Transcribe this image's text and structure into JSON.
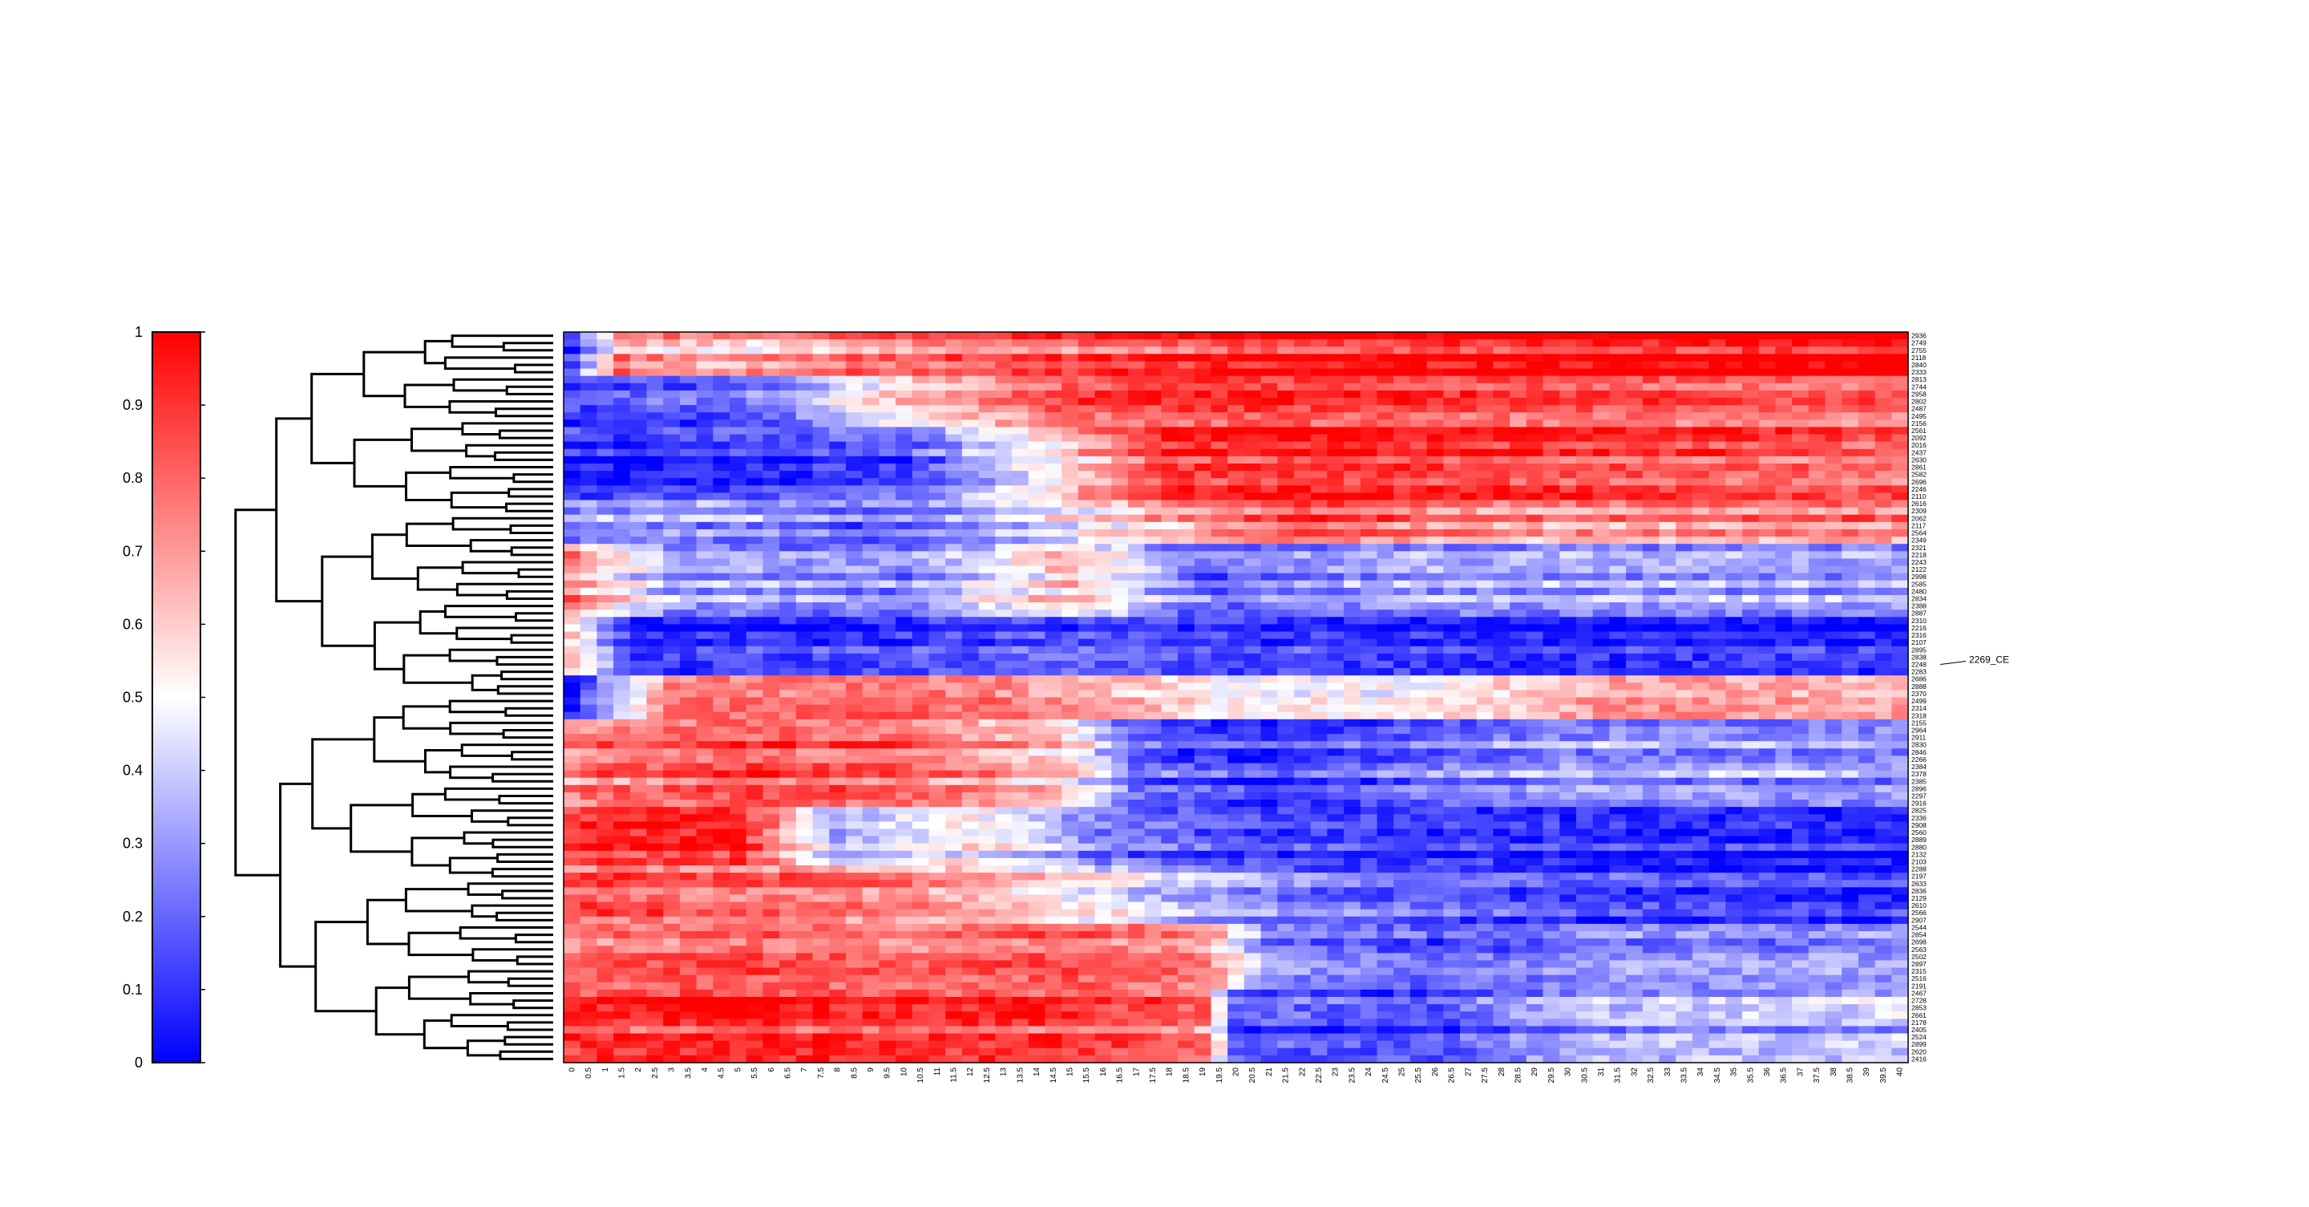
{
  "chart_data": {
    "type": "heatmap",
    "title": "",
    "xlabel": "",
    "ylabel": "",
    "colorbar": {
      "range": [
        0,
        1
      ],
      "ticks": [
        0,
        0.1,
        0.2,
        0.3,
        0.4,
        0.5,
        0.6,
        0.7,
        0.8,
        0.9,
        1
      ],
      "tick_labels": [
        "0",
        "0.1",
        "0.2",
        "0.3",
        "0.4",
        "0.5",
        "0.6",
        "0.7",
        "0.8",
        "0.9",
        "1"
      ],
      "colormap": [
        "#0000ff",
        "#ffffff",
        "#ff0000"
      ]
    },
    "x_ticks": [
      "0",
      "0.5",
      "1",
      "1.5",
      "2",
      "2.5",
      "3",
      "3.5",
      "4",
      "4.5",
      "5",
      "5.5",
      "6",
      "6.5",
      "7",
      "7.5",
      "8",
      "8.5",
      "9",
      "9.5",
      "10",
      "10.5",
      "11",
      "11.5",
      "12",
      "12.5",
      "13",
      "13.5",
      "14",
      "14.5",
      "15",
      "15.5",
      "16",
      "16.5",
      "17",
      "17.5",
      "18",
      "18.5",
      "19",
      "19.5",
      "20",
      "20.5",
      "21",
      "21.5",
      "22",
      "22.5",
      "23",
      "23.5",
      "24",
      "24.5",
      "25",
      "25.5",
      "26",
      "26.5",
      "27",
      "27.5",
      "28",
      "28.5",
      "29",
      "29.5",
      "30",
      "30.5",
      "31",
      "31.5",
      "32",
      "32.5",
      "33",
      "33.5",
      "34",
      "34.5",
      "35",
      "35.5",
      "36",
      "36.5",
      "37",
      "37.5",
      "38",
      "38.5",
      "39",
      "39.5",
      "40"
    ],
    "row_count": 100,
    "row_labels": [
      "2936",
      "2749",
      "2755",
      "2118",
      "2840",
      "2333",
      "2813",
      "2744",
      "2958",
      "2802",
      "2487",
      "2495",
      "2156",
      "2561",
      "2092",
      "2016",
      "2437",
      "2630",
      "2861",
      "2582",
      "2696",
      "2246",
      "2110",
      "2616",
      "2309",
      "2062",
      "2117",
      "2564",
      "2349",
      "2321",
      "2218",
      "2243",
      "2122",
      "2998",
      "2585",
      "2480",
      "2834",
      "2388",
      "2887",
      "2310",
      "2216",
      "2316",
      "2107",
      "2895",
      "2838",
      "2248",
      "2283",
      "2686",
      "2888",
      "2370",
      "2499",
      "2314",
      "2318",
      "2155",
      "2964",
      "2911",
      "2830",
      "2846",
      "2266",
      "2384",
      "2378",
      "2385",
      "2896",
      "2297",
      "2916",
      "2825",
      "2336",
      "2908",
      "2560",
      "2889",
      "2880",
      "2132",
      "2103",
      "2288",
      "2197",
      "2633",
      "2836",
      "2129",
      "2610",
      "2566",
      "2907",
      "2544",
      "2854",
      "2698",
      "2563",
      "2502",
      "2897",
      "2315",
      "2516",
      "2191",
      "2467",
      "2728",
      "2853",
      "2661",
      "2178",
      "2405",
      "2524",
      "2899",
      "2620",
      "2416"
    ],
    "annotation": "2269_CE",
    "value_profiles": [
      {
        "rows": [
          0,
          5
        ],
        "anchors": [
          [
            0,
            0.1
          ],
          [
            1.5,
            0.7
          ],
          [
            5,
            0.6
          ],
          [
            10,
            0.75
          ],
          [
            15,
            0.8
          ],
          [
            20,
            0.9
          ],
          [
            30,
            0.95
          ],
          [
            40,
            1.0
          ]
        ]
      },
      {
        "rows": [
          6,
          12
        ],
        "anchors": [
          [
            0,
            0.15
          ],
          [
            5,
            0.2
          ],
          [
            10,
            0.6
          ],
          [
            15,
            0.85
          ],
          [
            20,
            0.9
          ],
          [
            30,
            0.85
          ],
          [
            40,
            0.8
          ]
        ]
      },
      {
        "rows": [
          13,
          22
        ],
        "anchors": [
          [
            0,
            0.05
          ],
          [
            5,
            0.1
          ],
          [
            10,
            0.15
          ],
          [
            13,
            0.4
          ],
          [
            18,
            0.9
          ],
          [
            25,
            0.9
          ],
          [
            40,
            0.8
          ]
        ]
      },
      {
        "rows": [
          23,
          28
        ],
        "anchors": [
          [
            0,
            0.3
          ],
          [
            5,
            0.3
          ],
          [
            10,
            0.2
          ],
          [
            17,
            0.6
          ],
          [
            22,
            0.85
          ],
          [
            28,
            0.7
          ],
          [
            40,
            0.75
          ]
        ]
      },
      {
        "rows": [
          29,
          38
        ],
        "anchors": [
          [
            0,
            0.7
          ],
          [
            3,
            0.3
          ],
          [
            10,
            0.25
          ],
          [
            15,
            0.6
          ],
          [
            19,
            0.2
          ],
          [
            25,
            0.3
          ],
          [
            40,
            0.3
          ]
        ]
      },
      {
        "rows": [
          39,
          46
        ],
        "anchors": [
          [
            0,
            0.6
          ],
          [
            2,
            0.1
          ],
          [
            10,
            0.15
          ],
          [
            15,
            0.2
          ],
          [
            20,
            0.15
          ],
          [
            30,
            0.1
          ],
          [
            40,
            0.1
          ]
        ]
      },
      {
        "rows": [
          47,
          52
        ],
        "anchors": [
          [
            0,
            0.1
          ],
          [
            3,
            0.8
          ],
          [
            10,
            0.85
          ],
          [
            15,
            0.75
          ],
          [
            20,
            0.55
          ],
          [
            25,
            0.55
          ],
          [
            32,
            0.75
          ],
          [
            40,
            0.7
          ]
        ]
      },
      {
        "rows": [
          53,
          64
        ],
        "anchors": [
          [
            0,
            0.75
          ],
          [
            5,
            0.85
          ],
          [
            10,
            0.8
          ],
          [
            15,
            0.6
          ],
          [
            17,
            0.2
          ],
          [
            21,
            0.1
          ],
          [
            25,
            0.2
          ],
          [
            30,
            0.3
          ],
          [
            40,
            0.3
          ]
        ]
      },
      {
        "rows": [
          65,
          72
        ],
        "anchors": [
          [
            0,
            0.85
          ],
          [
            5,
            0.9
          ],
          [
            8,
            0.3
          ],
          [
            12,
            0.5
          ],
          [
            16,
            0.2
          ],
          [
            20,
            0.1
          ],
          [
            30,
            0.05
          ],
          [
            40,
            0.03
          ]
        ]
      },
      {
        "rows": [
          73,
          80
        ],
        "anchors": [
          [
            0,
            0.85
          ],
          [
            5,
            0.8
          ],
          [
            10,
            0.75
          ],
          [
            15,
            0.55
          ],
          [
            18,
            0.4
          ],
          [
            22,
            0.25
          ],
          [
            30,
            0.15
          ],
          [
            40,
            0.1
          ]
        ]
      },
      {
        "rows": [
          81,
          89
        ],
        "anchors": [
          [
            0,
            0.8
          ],
          [
            5,
            0.85
          ],
          [
            10,
            0.8
          ],
          [
            15,
            0.85
          ],
          [
            19,
            0.75
          ],
          [
            21,
            0.3
          ],
          [
            26,
            0.2
          ],
          [
            32,
            0.3
          ],
          [
            40,
            0.3
          ]
        ]
      },
      {
        "rows": [
          90,
          99
        ],
        "anchors": [
          [
            0,
            0.85
          ],
          [
            5,
            0.9
          ],
          [
            10,
            0.85
          ],
          [
            15,
            0.85
          ],
          [
            19,
            0.75
          ],
          [
            20,
            0.15
          ],
          [
            26,
            0.1
          ],
          [
            30,
            0.3
          ],
          [
            40,
            0.35
          ]
        ]
      }
    ]
  }
}
